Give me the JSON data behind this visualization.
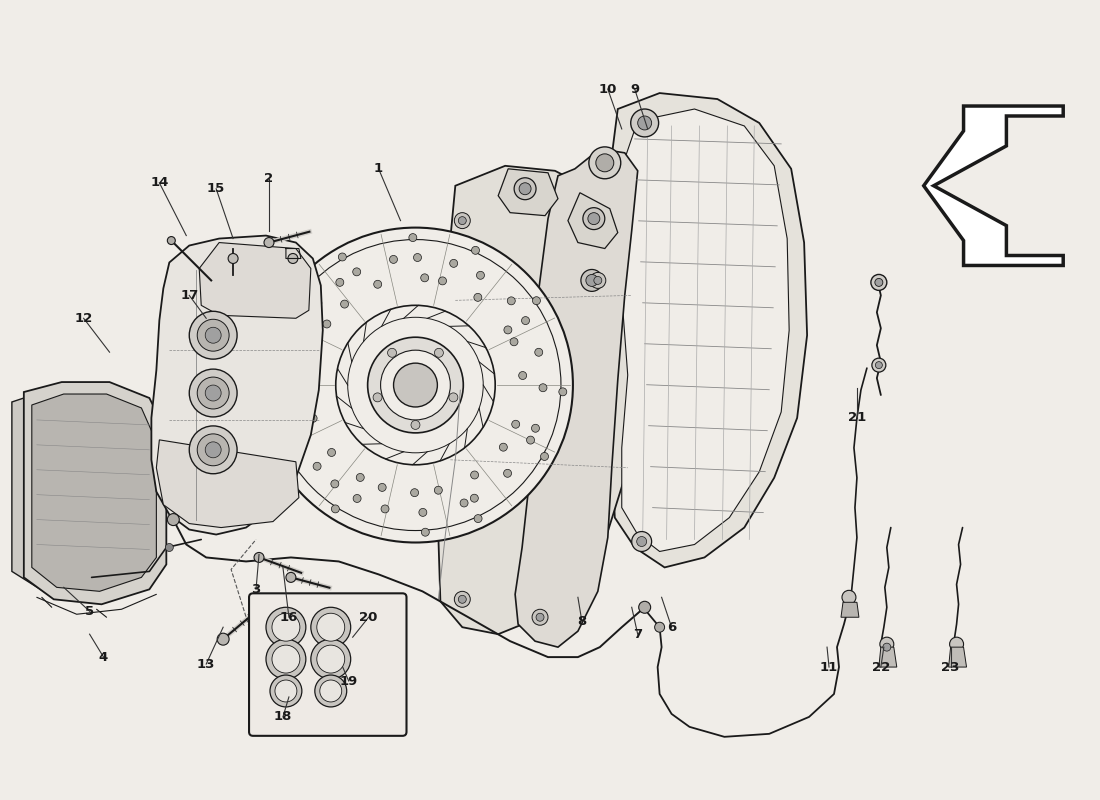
{
  "background_color": "#f0ede8",
  "line_color": "#1a1a1a",
  "figsize": [
    11.0,
    8.0
  ],
  "dpi": 100,
  "label_data": [
    [
      1,
      378,
      168,
      400,
      220
    ],
    [
      2,
      268,
      178,
      268,
      230
    ],
    [
      3,
      255,
      590,
      258,
      555
    ],
    [
      4,
      102,
      658,
      88,
      635
    ],
    [
      5,
      88,
      612,
      62,
      588
    ],
    [
      6,
      672,
      628,
      662,
      598
    ],
    [
      7,
      638,
      635,
      632,
      608
    ],
    [
      8,
      582,
      622,
      578,
      598
    ],
    [
      9,
      635,
      88,
      648,
      128
    ],
    [
      10,
      608,
      88,
      622,
      128
    ],
    [
      11,
      830,
      668,
      828,
      648
    ],
    [
      12,
      82,
      318,
      108,
      352
    ],
    [
      13,
      205,
      665,
      222,
      628
    ],
    [
      14,
      158,
      182,
      185,
      235
    ],
    [
      15,
      215,
      188,
      232,
      238
    ],
    [
      16,
      288,
      618,
      282,
      568
    ],
    [
      17,
      188,
      295,
      205,
      318
    ],
    [
      18,
      282,
      718,
      288,
      698
    ],
    [
      19,
      348,
      682,
      342,
      668
    ],
    [
      20,
      368,
      618,
      352,
      638
    ],
    [
      21,
      858,
      418,
      858,
      388
    ],
    [
      22,
      882,
      668,
      885,
      648
    ],
    [
      23,
      952,
      668,
      952,
      648
    ]
  ]
}
